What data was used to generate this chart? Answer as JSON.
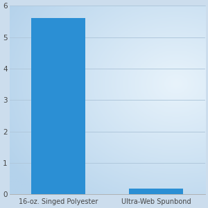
{
  "categories": [
    "16-oz. Singed Polyester",
    "Ultra-Web Spunbond"
  ],
  "values": [
    5.6,
    0.18
  ],
  "bar_color": "#2B8FD4",
  "ylim": [
    0,
    6
  ],
  "yticks": [
    0,
    1,
    2,
    3,
    4,
    5,
    6
  ],
  "xlabel_fontsize": 7.0,
  "tick_fontsize": 7.5,
  "grid_color": "#b0c8dc",
  "bar_width": 0.55,
  "bg_outer": "#c2d9ec",
  "bg_inner": "#e8f3fb",
  "fig_bg": "#ccdded"
}
